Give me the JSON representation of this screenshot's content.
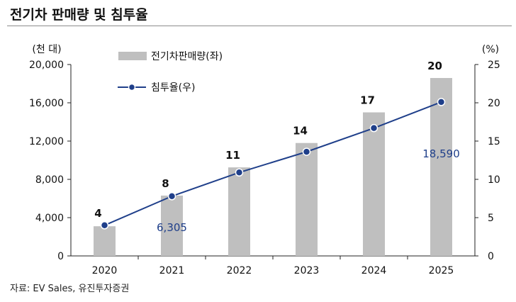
{
  "title": "전기차 판매량 및 침투율",
  "source": "자료: EV Sales, 유진투자증권",
  "chart_data": {
    "type": "bar",
    "categories": [
      "2020",
      "2021",
      "2022",
      "2023",
      "2024",
      "2025"
    ],
    "series": [
      {
        "name": "전기차판매량(좌)",
        "type": "bar",
        "axis": "left",
        "color": "#bfbfbf",
        "values": [
          3100,
          6305,
          9250,
          11800,
          15000,
          18590
        ]
      },
      {
        "name": "침투율(우)",
        "type": "line",
        "axis": "right",
        "color": "#1f3f8a",
        "values": [
          4.0,
          7.8,
          10.9,
          13.6,
          16.7,
          20.1
        ]
      }
    ],
    "bar_labels": [
      "4",
      "8",
      "11",
      "14",
      "17",
      "20"
    ],
    "callouts": [
      {
        "category": "2021",
        "text": "6,305"
      },
      {
        "category": "2025",
        "text": "18,590"
      }
    ],
    "left_axis": {
      "unit": "(천 대)",
      "range": [
        0,
        20000
      ],
      "ticks": [
        0,
        4000,
        8000,
        12000,
        16000,
        20000
      ],
      "tick_labels": [
        "0",
        "4,000",
        "8,000",
        "12,000",
        "16,000",
        "20,000"
      ]
    },
    "right_axis": {
      "unit": "(%)",
      "range": [
        0,
        25
      ],
      "ticks": [
        0,
        5,
        10,
        15,
        20,
        25
      ],
      "tick_labels": [
        "0",
        "5",
        "10",
        "15",
        "20",
        "25"
      ]
    },
    "grid": false,
    "legend": "top-left"
  }
}
